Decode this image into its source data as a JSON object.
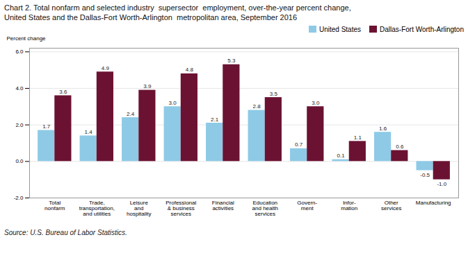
{
  "chart_data": {
    "type": "bar",
    "title": "Chart 2. Total nonfarm and selected industry  supersector  employment, over-the-year percent change,",
    "subtitle": "United States and the Dallas-Fort Worth-Arlington  metropolitan area, September 2016",
    "ylabel": "Percent change",
    "caption": "Source: U.S. Bureau of Labor Statistics.",
    "categories": [
      "Total\nnonfarm",
      "Trade,\ntransportation,\nand utilities",
      "Leisure\nand\nhospitality",
      "Professional\n& business\nservices",
      "Financial\nactivities",
      "Education\nand health\nservices",
      "Govern-\nment",
      "Infor-\nmation",
      "Other\nservices",
      "Manufacturing"
    ],
    "series": [
      {
        "name": "United States",
        "color": "#8ECAE6",
        "values": [
          1.7,
          1.4,
          2.4,
          3.0,
          2.1,
          2.8,
          0.7,
          0.1,
          1.6,
          -0.5
        ],
        "value_labels": [
          "1.7",
          "1.4",
          "2.4",
          "3.0",
          "2.1",
          "2.8",
          "0.7",
          "0.1",
          "1.6",
          "-0.5"
        ]
      },
      {
        "name": "Dallas-Fort Worth-Arlington",
        "color": "#6B1232",
        "values": [
          3.6,
          4.9,
          3.9,
          4.8,
          5.3,
          3.5,
          3.0,
          1.1,
          0.6,
          -1.0
        ],
        "value_labels": [
          "3.6",
          "4.9",
          "3.9",
          "4.8",
          "5.3",
          "3.5",
          "3.0",
          "1.1",
          "0.6",
          "-1.0"
        ]
      }
    ],
    "ylim": [
      -2.0,
      6.2
    ],
    "yticks": [
      {
        "value": -2.0,
        "label": "-2.0"
      },
      {
        "value": 0.0,
        "label": "0.0"
      },
      {
        "value": 2.0,
        "label": "2.0"
      },
      {
        "value": 4.0,
        "label": "4.0"
      },
      {
        "value": 6.0,
        "label": "6.0"
      }
    ],
    "grid": true,
    "legend": "upper right",
    "data_labels": true
  }
}
